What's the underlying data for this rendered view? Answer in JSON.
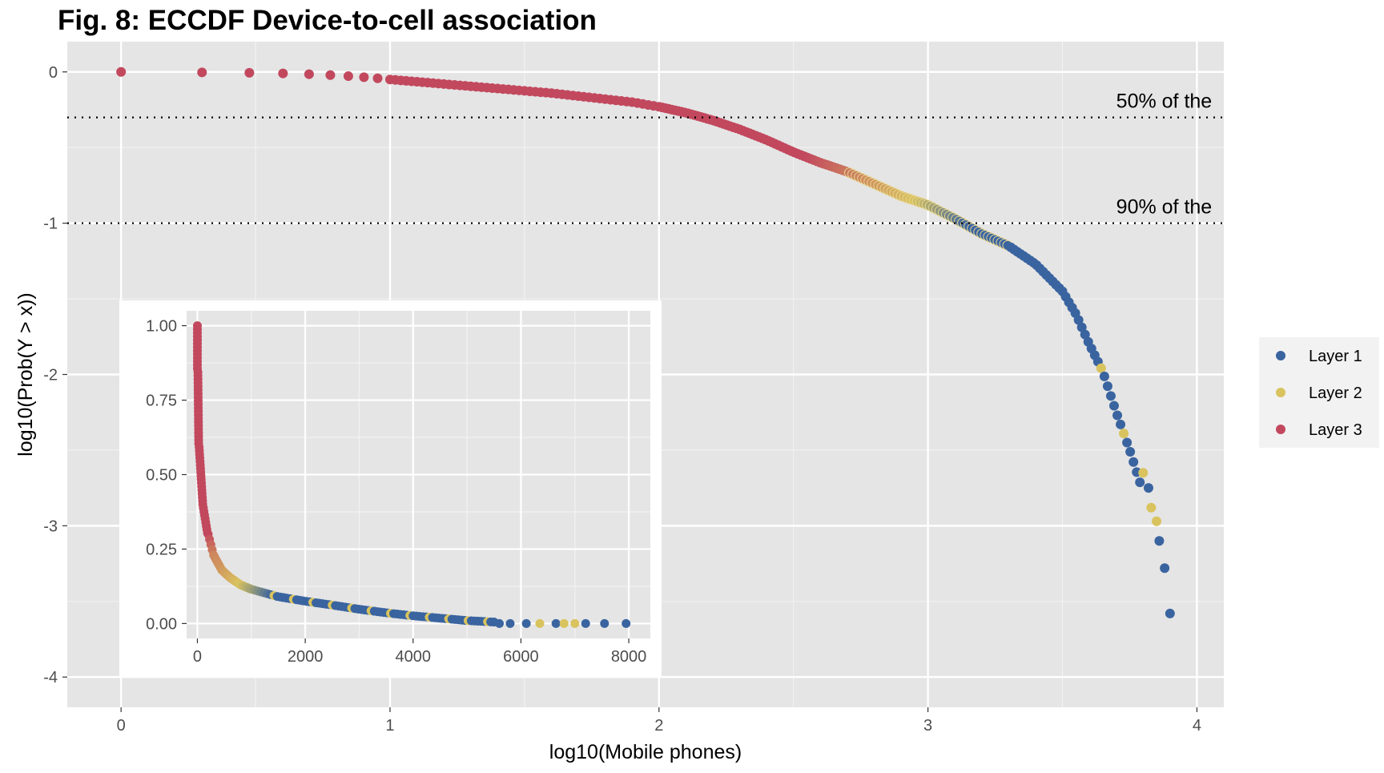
{
  "chart_data": {
    "type": "scatter",
    "title": "Fig. 8: ECCDF Device-to-cell association",
    "xlabel": "log10(Mobile phones)",
    "ylabel": "log10(Prob(Y > x))",
    "xlim": [
      -0.2,
      4.1
    ],
    "ylim": [
      -4.2,
      0.2
    ],
    "x_ticks": [
      "0",
      "1",
      "2",
      "3",
      "4"
    ],
    "y_ticks": [
      "0",
      "-1",
      "-2",
      "-3",
      "-4"
    ],
    "grid": true,
    "legend_position": "right",
    "legend": [
      {
        "name": "Layer 1",
        "color": "#3a64a0"
      },
      {
        "name": "Layer 2",
        "color": "#d9c35e"
      },
      {
        "name": "Layer 3",
        "color": "#c2485e"
      }
    ],
    "hlines": [
      {
        "y": -0.301,
        "label": "50% of the"
      },
      {
        "y": -1.0,
        "label": "90% of the"
      }
    ],
    "curve": [
      [
        0.0,
        0.0
      ],
      [
        0.301,
        -0.003
      ],
      [
        0.477,
        -0.006
      ],
      [
        0.602,
        -0.01
      ],
      [
        0.699,
        -0.015
      ],
      [
        0.778,
        -0.021
      ],
      [
        0.845,
        -0.028
      ],
      [
        0.903,
        -0.035
      ],
      [
        0.954,
        -0.042
      ],
      [
        1.0,
        -0.05
      ],
      [
        1.2,
        -0.08
      ],
      [
        1.4,
        -0.11
      ],
      [
        1.6,
        -0.14
      ],
      [
        1.8,
        -0.18
      ],
      [
        1.9,
        -0.2
      ],
      [
        2.0,
        -0.23
      ],
      [
        2.1,
        -0.27
      ],
      [
        2.2,
        -0.32
      ],
      [
        2.3,
        -0.38
      ],
      [
        2.4,
        -0.45
      ],
      [
        2.5,
        -0.53
      ],
      [
        2.6,
        -0.6
      ],
      [
        2.7,
        -0.66
      ],
      [
        2.8,
        -0.74
      ],
      [
        2.9,
        -0.82
      ],
      [
        3.0,
        -0.88
      ],
      [
        3.1,
        -0.97
      ],
      [
        3.2,
        -1.07
      ],
      [
        3.3,
        -1.15
      ],
      [
        3.4,
        -1.27
      ],
      [
        3.5,
        -1.45
      ],
      [
        3.55,
        -1.6
      ],
      [
        3.6,
        -1.8
      ],
      [
        3.65,
        -1.98
      ],
      [
        3.7,
        -2.25
      ],
      [
        3.75,
        -2.5
      ],
      [
        3.8,
        -2.78
      ],
      [
        3.83,
        -2.88
      ],
      [
        3.85,
        -3.05
      ],
      [
        3.87,
        -3.25
      ],
      [
        3.9,
        -3.55
      ]
    ],
    "tail_points": [
      {
        "x": 3.8,
        "y": -2.65,
        "layer": "Layer 2"
      },
      {
        "x": 3.82,
        "y": -2.75,
        "layer": "Layer 1"
      },
      {
        "x": 3.83,
        "y": -2.88,
        "layer": "Layer 2"
      },
      {
        "x": 3.85,
        "y": -2.97,
        "layer": "Layer 2"
      },
      {
        "x": 3.86,
        "y": -3.1,
        "layer": "Layer 1"
      },
      {
        "x": 3.88,
        "y": -3.28,
        "layer": "Layer 1"
      },
      {
        "x": 3.9,
        "y": -3.58,
        "layer": "Layer 1"
      }
    ],
    "inset": {
      "type": "scatter",
      "xlim": [
        -200,
        8400
      ],
      "ylim": [
        -0.05,
        1.05
      ],
      "x_ticks": [
        "0",
        "2000",
        "4000",
        "6000",
        "8000"
      ],
      "y_ticks": [
        "0.00",
        "0.25",
        "0.50",
        "0.75",
        "1.00"
      ],
      "curve": [
        [
          0,
          1.0
        ],
        [
          10,
          0.85
        ],
        [
          20,
          0.72
        ],
        [
          40,
          0.6
        ],
        [
          70,
          0.5
        ],
        [
          120,
          0.4
        ],
        [
          200,
          0.3
        ],
        [
          300,
          0.23
        ],
        [
          450,
          0.18
        ],
        [
          600,
          0.155
        ],
        [
          800,
          0.13
        ],
        [
          1000,
          0.115
        ],
        [
          1500,
          0.09
        ],
        [
          2000,
          0.075
        ],
        [
          2500,
          0.062
        ],
        [
          3000,
          0.048
        ],
        [
          3500,
          0.036
        ],
        [
          4000,
          0.026
        ],
        [
          4500,
          0.018
        ],
        [
          5000,
          0.01
        ],
        [
          5500,
          0.005
        ]
      ],
      "tail_points": [
        {
          "x": 5600,
          "y": 0.0,
          "layer": "Layer 1"
        },
        {
          "x": 5800,
          "y": 0.0,
          "layer": "Layer 1"
        },
        {
          "x": 6100,
          "y": 0.0,
          "layer": "Layer 1"
        },
        {
          "x": 6350,
          "y": 0.0,
          "layer": "Layer 2"
        },
        {
          "x": 6650,
          "y": 0.0,
          "layer": "Layer 1"
        },
        {
          "x": 6800,
          "y": 0.0,
          "layer": "Layer 2"
        },
        {
          "x": 7000,
          "y": 0.0,
          "layer": "Layer 2"
        },
        {
          "x": 7200,
          "y": 0.0,
          "layer": "Layer 1"
        },
        {
          "x": 7550,
          "y": 0.0,
          "layer": "Layer 1"
        },
        {
          "x": 7950,
          "y": 0.0,
          "layer": "Layer 1"
        }
      ]
    }
  }
}
